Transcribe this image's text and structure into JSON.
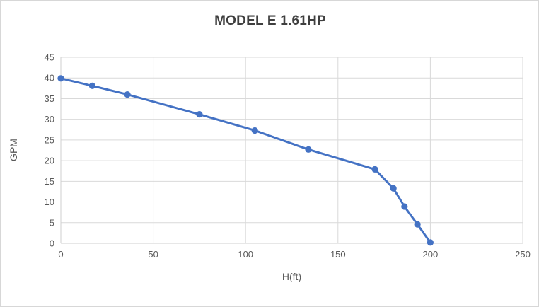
{
  "chart_data": {
    "type": "line",
    "title": "MODEL E 1.61HP",
    "xlabel": "H(ft)",
    "ylabel": "GPM",
    "series": [
      {
        "name": "MODEL E 1.61HP",
        "x": [
          0,
          17,
          36,
          75,
          105,
          134,
          170,
          180,
          186,
          193,
          200
        ],
        "y": [
          39.9,
          38.1,
          36.0,
          31.2,
          27.3,
          22.7,
          17.9,
          13.3,
          8.9,
          4.6,
          0.2
        ]
      }
    ],
    "xlim": [
      0,
      250
    ],
    "ylim": [
      0,
      45
    ],
    "x_ticks": [
      0,
      50,
      100,
      150,
      200,
      250
    ],
    "y_ticks": [
      0,
      5,
      10,
      15,
      20,
      25,
      30,
      35,
      40,
      45
    ],
    "grid": "on",
    "legend": "none",
    "marker": "circle"
  },
  "colors": {
    "line": "#4472C4",
    "marker": "#4472C4",
    "gridline": "#d9d9d9",
    "axis_line": "#cfcfcf",
    "tick_text": "#595959",
    "title_text": "#3f3f3f",
    "frame_border": "#d7d7d7",
    "background": "#ffffff"
  }
}
